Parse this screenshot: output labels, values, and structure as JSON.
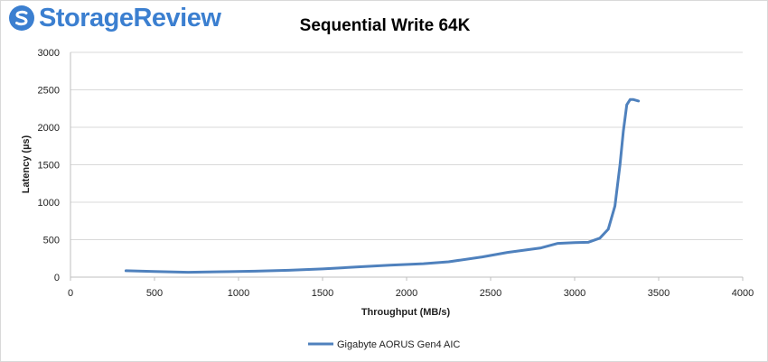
{
  "brand": {
    "name": "StorageReview",
    "color": "#3b7fd0"
  },
  "chart_data": {
    "type": "line",
    "title": "Sequential Write 64K",
    "xlabel": "Throughput (MB/s)",
    "ylabel": "Latency (µs)",
    "xlim": [
      0,
      4000
    ],
    "ylim": [
      0,
      3000
    ],
    "xticks": [
      0,
      500,
      1000,
      1500,
      2000,
      2500,
      3000,
      3500,
      4000
    ],
    "yticks": [
      0,
      500,
      1000,
      1500,
      2000,
      2500,
      3000
    ],
    "grid": "horizontal",
    "legend_position": "bottom",
    "series": [
      {
        "name": "Gigabyte AORUS Gen4 AIC",
        "color": "#4f81bd",
        "points": [
          [
            330,
            85
          ],
          [
            500,
            75
          ],
          [
            700,
            65
          ],
          [
            900,
            72
          ],
          [
            1100,
            80
          ],
          [
            1300,
            92
          ],
          [
            1500,
            110
          ],
          [
            1700,
            135
          ],
          [
            1900,
            160
          ],
          [
            2100,
            180
          ],
          [
            2250,
            205
          ],
          [
            2450,
            270
          ],
          [
            2600,
            330
          ],
          [
            2800,
            390
          ],
          [
            2900,
            450
          ],
          [
            3000,
            460
          ],
          [
            3080,
            465
          ],
          [
            3150,
            520
          ],
          [
            3200,
            640
          ],
          [
            3240,
            950
          ],
          [
            3270,
            1500
          ],
          [
            3290,
            1950
          ],
          [
            3310,
            2300
          ],
          [
            3330,
            2370
          ],
          [
            3350,
            2370
          ],
          [
            3380,
            2350
          ]
        ]
      }
    ]
  }
}
